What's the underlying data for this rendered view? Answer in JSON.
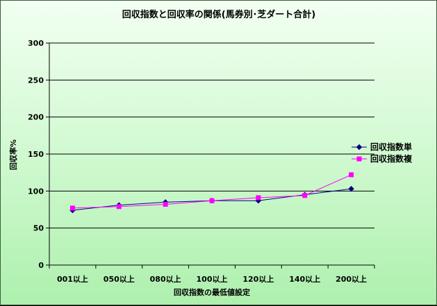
{
  "chart_data": {
    "type": "line",
    "title": "回収指数と回収率の関係(馬券別･芝ダート合計)",
    "xlabel": "回収指数の最低値設定",
    "ylabel": "回収率%",
    "categories": [
      "001以上",
      "050以上",
      "080以上",
      "100以上",
      "120以上",
      "140以上",
      "200以上"
    ],
    "ylim": [
      0,
      300
    ],
    "yticks": [
      0,
      50,
      100,
      150,
      200,
      250,
      300
    ],
    "grid": true,
    "legend_position": "right",
    "series": [
      {
        "name": "回収指数単",
        "color": "#000080",
        "marker": "diamond",
        "values": [
          74,
          81,
          85,
          87,
          87,
          95,
          103
        ]
      },
      {
        "name": "回収指数複",
        "color": "#ff00ff",
        "marker": "square",
        "values": [
          77,
          79,
          82,
          87,
          91,
          94,
          122
        ]
      }
    ]
  }
}
